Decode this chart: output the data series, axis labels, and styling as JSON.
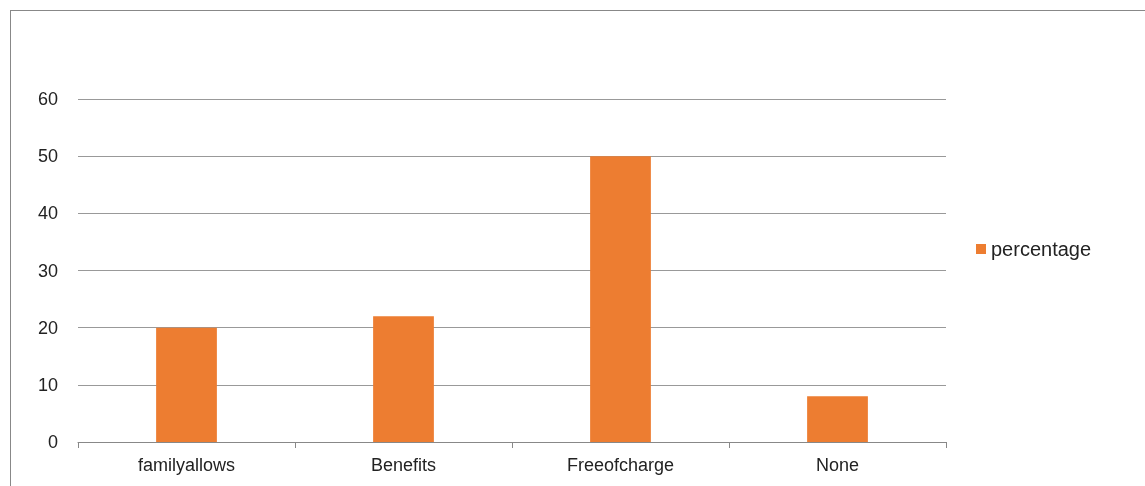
{
  "chart_data": {
    "type": "bar",
    "categories": [
      "familyallows",
      "Benefits",
      "Freeofcharge",
      "None"
    ],
    "series": [
      {
        "name": "percentage",
        "color": "#ed7d31",
        "values": [
          20,
          22,
          50,
          8
        ]
      }
    ],
    "ylim": [
      0,
      60
    ],
    "yticks": [
      0,
      10,
      20,
      30,
      40,
      50,
      60
    ],
    "grid": "y",
    "legend": "right"
  }
}
